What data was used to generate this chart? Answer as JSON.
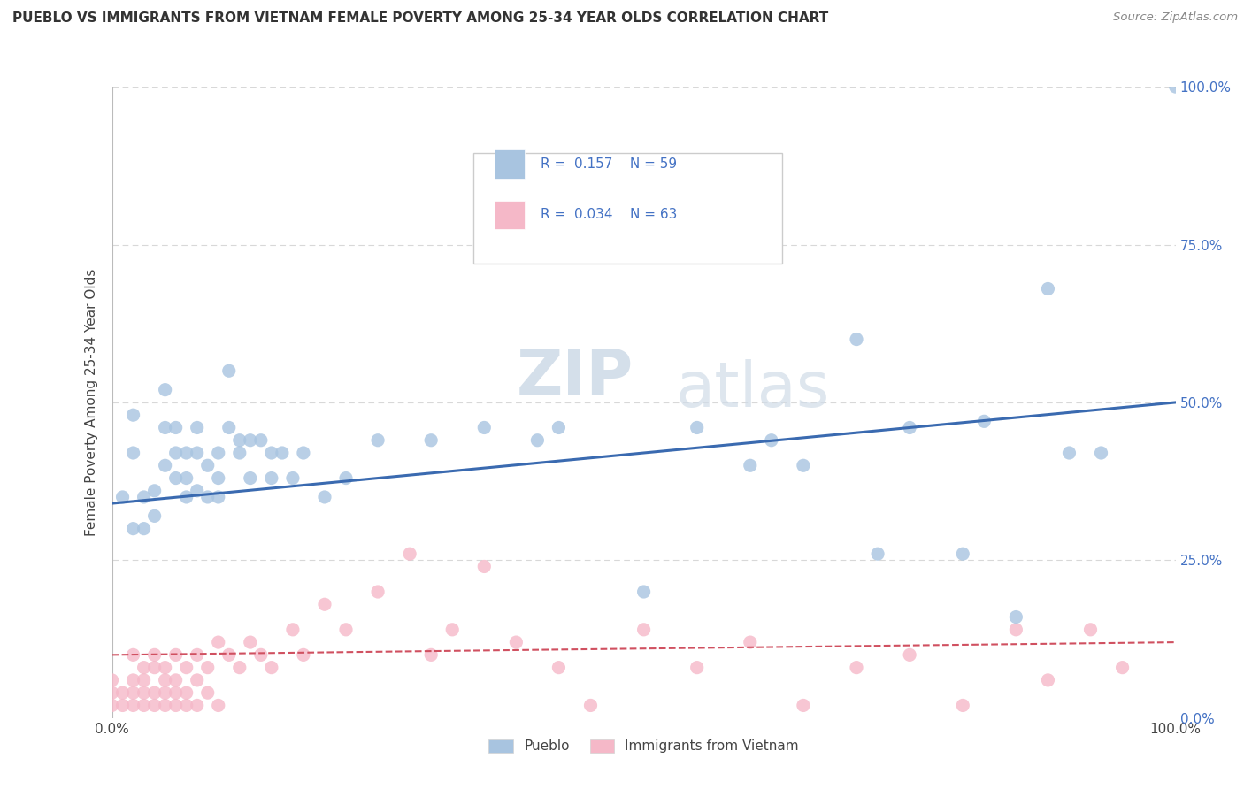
{
  "title": "PUEBLO VS IMMIGRANTS FROM VIETNAM FEMALE POVERTY AMONG 25-34 YEAR OLDS CORRELATION CHART",
  "source": "Source: ZipAtlas.com",
  "ylabel": "Female Poverty Among 25-34 Year Olds",
  "legend_labels": [
    "Pueblo",
    "Immigrants from Vietnam"
  ],
  "pueblo_R": "0.157",
  "pueblo_N": "59",
  "vietnam_R": "0.034",
  "vietnam_N": "63",
  "pueblo_color": "#a8c4e0",
  "vietnam_color": "#f5b8c8",
  "pueblo_line_color": "#3a6ab0",
  "vietnam_line_color": "#d05060",
  "watermark_zip": "ZIP",
  "watermark_atlas": "atlas",
  "pueblo_scatter_x": [
    0.01,
    0.02,
    0.02,
    0.02,
    0.03,
    0.03,
    0.04,
    0.04,
    0.05,
    0.05,
    0.05,
    0.06,
    0.06,
    0.06,
    0.07,
    0.07,
    0.07,
    0.08,
    0.08,
    0.08,
    0.09,
    0.09,
    0.1,
    0.1,
    0.1,
    0.11,
    0.11,
    0.12,
    0.12,
    0.13,
    0.13,
    0.14,
    0.15,
    0.15,
    0.16,
    0.17,
    0.18,
    0.2,
    0.22,
    0.25,
    0.3,
    0.35,
    0.4,
    0.42,
    0.5,
    0.55,
    0.6,
    0.62,
    0.65,
    0.7,
    0.72,
    0.75,
    0.8,
    0.82,
    0.85,
    0.88,
    0.9,
    0.93,
    1.0
  ],
  "pueblo_scatter_y": [
    0.35,
    0.42,
    0.48,
    0.3,
    0.35,
    0.3,
    0.36,
    0.32,
    0.46,
    0.52,
    0.4,
    0.42,
    0.38,
    0.46,
    0.38,
    0.42,
    0.35,
    0.36,
    0.42,
    0.46,
    0.4,
    0.35,
    0.35,
    0.38,
    0.42,
    0.46,
    0.55,
    0.44,
    0.42,
    0.44,
    0.38,
    0.44,
    0.42,
    0.38,
    0.42,
    0.38,
    0.42,
    0.35,
    0.38,
    0.44,
    0.44,
    0.46,
    0.44,
    0.46,
    0.2,
    0.46,
    0.4,
    0.44,
    0.4,
    0.6,
    0.26,
    0.46,
    0.26,
    0.47,
    0.16,
    0.68,
    0.42,
    0.42,
    1.0
  ],
  "vietnam_scatter_x": [
    0.0,
    0.0,
    0.0,
    0.01,
    0.01,
    0.02,
    0.02,
    0.02,
    0.02,
    0.03,
    0.03,
    0.03,
    0.03,
    0.04,
    0.04,
    0.04,
    0.04,
    0.05,
    0.05,
    0.05,
    0.05,
    0.06,
    0.06,
    0.06,
    0.06,
    0.07,
    0.07,
    0.07,
    0.08,
    0.08,
    0.08,
    0.09,
    0.09,
    0.1,
    0.1,
    0.11,
    0.12,
    0.13,
    0.14,
    0.15,
    0.17,
    0.18,
    0.2,
    0.22,
    0.25,
    0.28,
    0.3,
    0.32,
    0.35,
    0.38,
    0.42,
    0.45,
    0.5,
    0.55,
    0.6,
    0.65,
    0.7,
    0.75,
    0.8,
    0.85,
    0.88,
    0.92,
    0.95
  ],
  "vietnam_scatter_y": [
    0.04,
    0.02,
    0.06,
    0.04,
    0.02,
    0.06,
    0.02,
    0.1,
    0.04,
    0.02,
    0.06,
    0.04,
    0.08,
    0.02,
    0.04,
    0.1,
    0.08,
    0.02,
    0.06,
    0.08,
    0.04,
    0.02,
    0.06,
    0.1,
    0.04,
    0.02,
    0.08,
    0.04,
    0.02,
    0.06,
    0.1,
    0.04,
    0.08,
    0.02,
    0.12,
    0.1,
    0.08,
    0.12,
    0.1,
    0.08,
    0.14,
    0.1,
    0.18,
    0.14,
    0.2,
    0.26,
    0.1,
    0.14,
    0.24,
    0.12,
    0.08,
    0.02,
    0.14,
    0.08,
    0.12,
    0.02,
    0.08,
    0.1,
    0.02,
    0.14,
    0.06,
    0.14,
    0.08
  ],
  "pueblo_line_start_y": 0.34,
  "pueblo_line_end_y": 0.5,
  "vietnam_line_start_y": 0.1,
  "vietnam_line_end_y": 0.12,
  "xlim": [
    0.0,
    1.0
  ],
  "ylim": [
    0.0,
    1.0
  ],
  "background_color": "#ffffff",
  "grid_color": "#d8d8d8"
}
